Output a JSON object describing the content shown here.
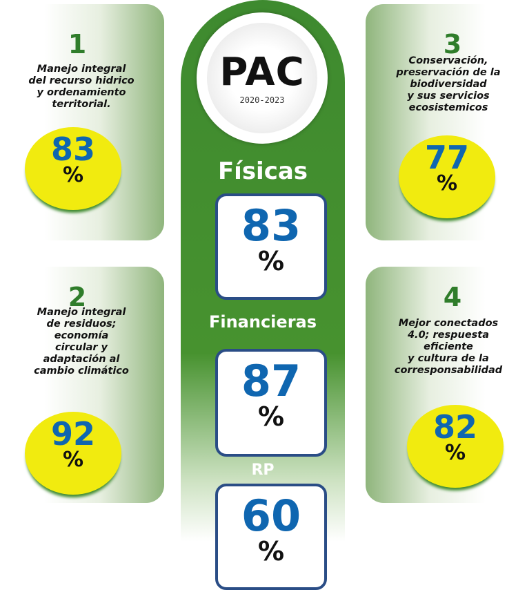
{
  "logo": {
    "title": "PAC",
    "years": "2020-2023"
  },
  "center": [
    {
      "label": "Físicas",
      "value": "83",
      "unit": "%"
    },
    {
      "label": "Financieras",
      "value": "87",
      "unit": "%"
    },
    {
      "label": "RP",
      "value": "60",
      "unit": "%"
    }
  ],
  "cards": [
    {
      "number": "1",
      "lines": [
        "Manejo integral",
        "del recurso  hidrico",
        "y ordenamiento",
        "territorial."
      ],
      "value": "83",
      "unit": "%"
    },
    {
      "number": "2",
      "lines": [
        "Manejo integral",
        "de residuos;",
        "economía",
        "circular y",
        "adaptación al",
        "cambio climático"
      ],
      "value": "92",
      "unit": "%"
    },
    {
      "number": "3",
      "lines": [
        "Conservación,",
        "preservación de la",
        "biodiversidad",
        "y sus servicios",
        "ecosistemicos"
      ],
      "value": "77",
      "unit": "%"
    },
    {
      "number": "4",
      "lines": [
        "Mejor conectados",
        "4.0;  respuesta",
        "eficiente",
        "y cultura de la",
        "corresponsabilidad"
      ],
      "value": "82",
      "unit": "%"
    }
  ]
}
